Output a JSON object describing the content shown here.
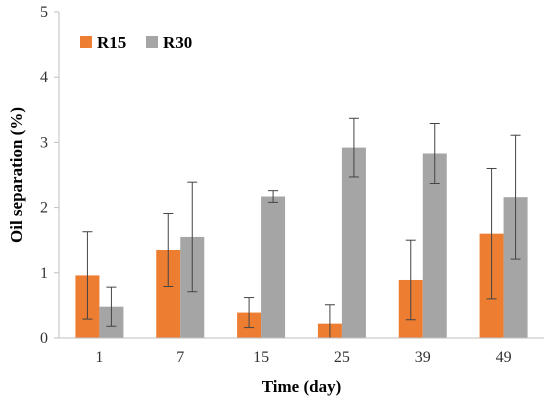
{
  "chart_data": {
    "type": "bar",
    "title": "",
    "xlabel": "Time (day)",
    "ylabel": "Oil separation (%)",
    "ylim": [
      0,
      5
    ],
    "yticks": [
      0,
      1,
      2,
      3,
      4,
      5
    ],
    "categories": [
      "1",
      "7",
      "15",
      "25",
      "39",
      "49"
    ],
    "series": [
      {
        "name": "R15",
        "color": "#ED7D31",
        "values": [
          0.96,
          1.35,
          0.39,
          0.22,
          0.89,
          1.6
        ],
        "error": [
          0.67,
          0.56,
          0.23,
          0.29,
          0.61,
          1.0
        ]
      },
      {
        "name": "R30",
        "color": "#A5A5A5",
        "values": [
          0.48,
          1.55,
          2.17,
          2.92,
          2.83,
          2.16
        ],
        "error": [
          0.3,
          0.84,
          0.09,
          0.45,
          0.46,
          0.95
        ]
      }
    ],
    "grid": false,
    "legend_position": "top-left"
  }
}
